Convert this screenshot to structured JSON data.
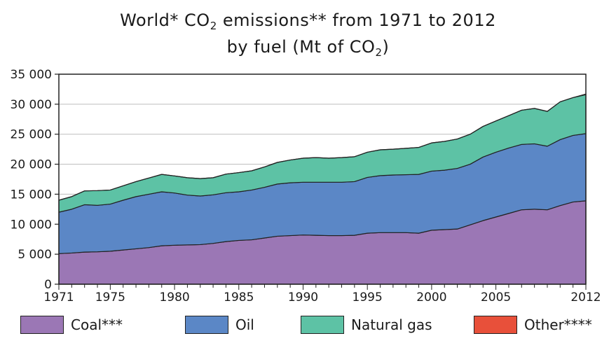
{
  "chart_data": {
    "type": "area",
    "stacked": true,
    "title_line1_pre": "World* CO",
    "title_line1_sub": "2",
    "title_line1_post": " emissions** from 1971 to 2012",
    "title_line2_pre": "by fuel (Mt of CO",
    "title_line2_sub": "2",
    "title_line2_post": ")",
    "xlabel": "",
    "ylabel": "",
    "xlim": [
      1971,
      2012
    ],
    "ylim": [
      0,
      35000
    ],
    "x_ticks": [
      1971,
      1975,
      1980,
      1985,
      1990,
      1995,
      2000,
      2005,
      2012
    ],
    "y_ticks": [
      0,
      5000,
      10000,
      15000,
      20000,
      25000,
      30000,
      35000
    ],
    "y_tick_labels": [
      "0",
      "5 000",
      "10 000",
      "15 000",
      "20 000",
      "25 000",
      "30 000",
      "35 000"
    ],
    "grid": "horizontal",
    "legend_position": "bottom",
    "x": [
      1971,
      1972,
      1973,
      1974,
      1975,
      1976,
      1977,
      1978,
      1979,
      1980,
      1981,
      1982,
      1983,
      1984,
      1985,
      1986,
      1987,
      1988,
      1989,
      1990,
      1991,
      1992,
      1993,
      1994,
      1995,
      1996,
      1997,
      1998,
      1999,
      2000,
      2001,
      2002,
      2003,
      2004,
      2005,
      2006,
      2007,
      2008,
      2009,
      2010,
      2011,
      2012
    ],
    "series": [
      {
        "name": "Coal***",
        "color": "#9b77b5",
        "values": [
          5100,
          5200,
          5350,
          5400,
          5500,
          5700,
          5900,
          6100,
          6400,
          6500,
          6550,
          6600,
          6800,
          7100,
          7300,
          7400,
          7700,
          8000,
          8100,
          8200,
          8150,
          8100,
          8100,
          8150,
          8500,
          8600,
          8600,
          8600,
          8500,
          9000,
          9100,
          9200,
          9900,
          10600,
          11200,
          11800,
          12400,
          12500,
          12400,
          13100,
          13700,
          13900
        ]
      },
      {
        "name": "Oil",
        "color": "#5b87c6",
        "values": [
          6900,
          7300,
          7900,
          7750,
          7850,
          8300,
          8700,
          8900,
          9000,
          8700,
          8300,
          8100,
          8100,
          8150,
          8100,
          8300,
          8450,
          8700,
          8800,
          8800,
          8850,
          8900,
          8900,
          8950,
          9300,
          9500,
          9600,
          9650,
          9800,
          9850,
          9900,
          10100,
          10100,
          10600,
          10800,
          10900,
          10900,
          10900,
          10600,
          11000,
          11100,
          11200
        ]
      },
      {
        "name": "Natural gas",
        "color": "#5dc2a5",
        "values": [
          2000,
          2100,
          2300,
          2450,
          2350,
          2400,
          2500,
          2700,
          2900,
          2850,
          2900,
          2900,
          2850,
          3100,
          3200,
          3200,
          3400,
          3600,
          3800,
          4000,
          4100,
          4000,
          4100,
          4150,
          4200,
          4300,
          4300,
          4400,
          4500,
          4700,
          4800,
          4900,
          5000,
          5100,
          5200,
          5400,
          5700,
          5900,
          5800,
          6300,
          6300,
          6500
        ]
      },
      {
        "name": "Other****",
        "color": "#e8503a",
        "values": [
          0,
          0,
          0,
          0,
          0,
          0,
          0,
          0,
          0,
          0,
          0,
          0,
          0,
          0,
          0,
          0,
          0,
          0,
          0,
          0,
          0,
          0,
          0,
          0,
          0,
          0,
          0,
          0,
          0,
          0,
          0,
          0,
          0,
          0,
          0,
          0,
          0,
          0,
          0,
          0,
          0,
          100
        ]
      }
    ]
  }
}
